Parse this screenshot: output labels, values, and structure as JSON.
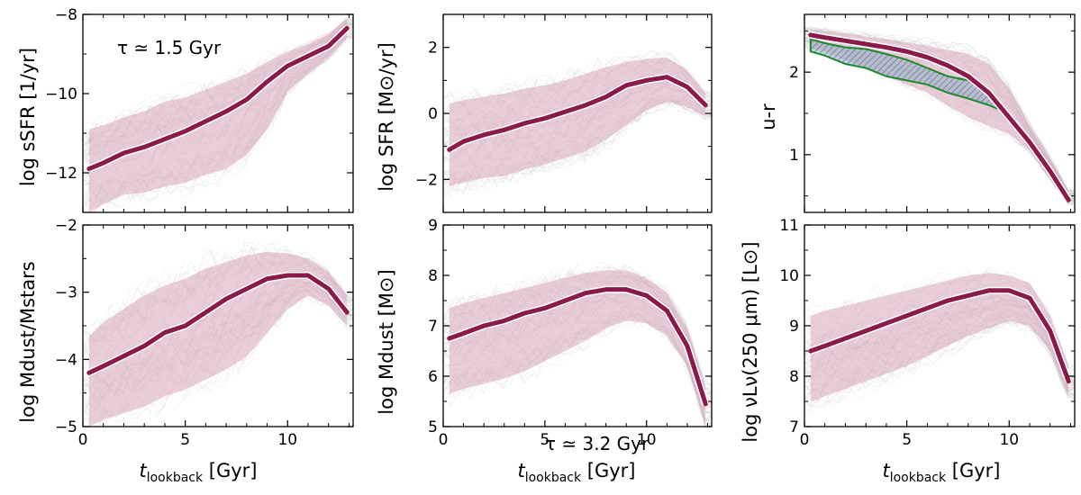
{
  "figure": {
    "xlabel_main": "t",
    "xlabel_sub": "lookback",
    "xlabel_unit": " [Gyr]",
    "annotation_top": "τ ≃ 1.5 Gyr",
    "annotation_bottom": "τ ≃ 3.2 Gyr",
    "colors": {
      "median": "#8b1a4a",
      "band": "#d8a8bc",
      "tracks": "#9a9a9a",
      "obs_fill": "#8fb0c8",
      "obs_edge": "#1f8a2c"
    }
  },
  "chart_data": [
    {
      "id": "ssfr",
      "type": "line",
      "ylabel": "log sSFR [1/yr]",
      "xlim": [
        0,
        13.2
      ],
      "ylim": [
        -13,
        -8
      ],
      "xticks": [
        0,
        5,
        10
      ],
      "yticks": [
        -12,
        -10,
        -8
      ],
      "ytick_labels": [
        "−12",
        "−10",
        "−8"
      ],
      "xtick_labels": [
        "",
        "",
        ""
      ],
      "annotation": "τ ≃ 1.5 Gyr",
      "series": [
        {
          "name": "median",
          "x": [
            0.3,
            1,
            2,
            3,
            4,
            5,
            6,
            7,
            8,
            9,
            10,
            11,
            12,
            12.9
          ],
          "y": [
            -11.9,
            -11.75,
            -11.5,
            -11.35,
            -11.15,
            -10.95,
            -10.7,
            -10.45,
            -10.15,
            -9.7,
            -9.3,
            -9.05,
            -8.8,
            -8.35
          ]
        },
        {
          "name": "upper",
          "x": [
            0.3,
            1,
            2,
            3,
            4,
            5,
            6,
            7,
            8,
            9,
            10,
            11,
            12,
            12.9
          ],
          "y": [
            -10.9,
            -10.8,
            -10.6,
            -10.45,
            -10.2,
            -10.1,
            -9.9,
            -9.7,
            -9.5,
            -9.2,
            -8.95,
            -8.75,
            -8.5,
            -8.1
          ]
        },
        {
          "name": "lower",
          "x": [
            0.3,
            1,
            2,
            3,
            4,
            5,
            6,
            7,
            8,
            9,
            10,
            11,
            12,
            12.9
          ],
          "y": [
            -13,
            -12.8,
            -12.55,
            -12.5,
            -12.35,
            -12.25,
            -12.05,
            -11.9,
            -11.55,
            -10.9,
            -9.95,
            -9.5,
            -9.1,
            -8.6
          ]
        }
      ]
    },
    {
      "id": "sfr",
      "type": "line",
      "ylabel": "log SFR [M⊙/yr]",
      "xlim": [
        0,
        13.2
      ],
      "ylim": [
        -3,
        3
      ],
      "xticks": [
        0,
        5,
        10
      ],
      "yticks": [
        -2,
        0,
        2
      ],
      "ytick_labels": [
        "−2",
        "0",
        "2"
      ],
      "xtick_labels": [
        "",
        "",
        ""
      ],
      "series": [
        {
          "name": "median",
          "x": [
            0.3,
            1,
            2,
            3,
            4,
            5,
            6,
            7,
            8,
            9,
            10,
            11,
            12,
            12.9
          ],
          "y": [
            -1.1,
            -0.85,
            -0.65,
            -0.5,
            -0.3,
            -0.15,
            0.05,
            0.25,
            0.5,
            0.85,
            1.0,
            1.1,
            0.8,
            0.25
          ]
        },
        {
          "name": "upper",
          "x": [
            0.3,
            1,
            2,
            3,
            4,
            5,
            6,
            7,
            8,
            9,
            10,
            11,
            12,
            12.9
          ],
          "y": [
            0.3,
            0.4,
            0.5,
            0.6,
            0.75,
            0.85,
            1.0,
            1.2,
            1.4,
            1.55,
            1.65,
            1.7,
            1.3,
            0.6
          ]
        },
        {
          "name": "lower",
          "x": [
            0.3,
            1,
            2,
            3,
            4,
            5,
            6,
            7,
            8,
            9,
            10,
            11,
            12,
            12.9
          ],
          "y": [
            -2.2,
            -2.1,
            -1.95,
            -1.9,
            -1.7,
            -1.55,
            -1.35,
            -1.15,
            -0.8,
            -0.35,
            0.1,
            0.35,
            0.2,
            -0.1
          ]
        }
      ]
    },
    {
      "id": "ur",
      "type": "line",
      "ylabel": "u-r",
      "xlim": [
        0,
        13.2
      ],
      "ylim": [
        0.3,
        2.7
      ],
      "xticks": [
        0,
        5,
        10
      ],
      "yticks": [
        1,
        2
      ],
      "ytick_labels": [
        "1",
        "2"
      ],
      "xtick_labels": [
        "",
        "",
        ""
      ],
      "series": [
        {
          "name": "median",
          "x": [
            0.3,
            1,
            2,
            3,
            4,
            5,
            6,
            7,
            8,
            9,
            10,
            11,
            12,
            12.9
          ],
          "y": [
            2.45,
            2.42,
            2.38,
            2.34,
            2.3,
            2.25,
            2.18,
            2.08,
            1.95,
            1.75,
            1.45,
            1.15,
            0.8,
            0.45
          ]
        },
        {
          "name": "upper",
          "x": [
            0.3,
            1,
            2,
            3,
            4,
            5,
            6,
            7,
            8,
            9,
            10,
            11,
            12,
            12.9
          ],
          "y": [
            2.52,
            2.5,
            2.47,
            2.43,
            2.4,
            2.36,
            2.32,
            2.27,
            2.22,
            2.1,
            1.8,
            1.35,
            0.95,
            0.55
          ]
        },
        {
          "name": "lower",
          "x": [
            0.3,
            1,
            2,
            3,
            4,
            5,
            6,
            7,
            8,
            9,
            10,
            11,
            12,
            12.9
          ],
          "y": [
            2.3,
            2.25,
            2.15,
            2.05,
            1.95,
            1.85,
            1.75,
            1.6,
            1.45,
            1.35,
            1.25,
            1.05,
            0.7,
            0.4
          ]
        },
        {
          "name": "observed_upper",
          "x": [
            0.3,
            1,
            2,
            3,
            4,
            5,
            6,
            7,
            8,
            9,
            9.5
          ],
          "y": [
            2.4,
            2.35,
            2.3,
            2.28,
            2.22,
            2.15,
            2.05,
            1.95,
            1.9,
            1.75,
            1.65
          ]
        },
        {
          "name": "observed_lower",
          "x": [
            0.3,
            1,
            2,
            3,
            4,
            5,
            6,
            7,
            8,
            9,
            9.5
          ],
          "y": [
            2.25,
            2.2,
            2.1,
            2.05,
            1.95,
            1.9,
            1.85,
            1.75,
            1.68,
            1.6,
            1.55
          ]
        }
      ]
    },
    {
      "id": "dust_ratio",
      "type": "line",
      "ylabel": "log Mdust/Mstars",
      "xlim": [
        0,
        13.2
      ],
      "ylim": [
        -5,
        -2
      ],
      "xticks": [
        0,
        5,
        10
      ],
      "yticks": [
        -5,
        -4,
        -3,
        -2
      ],
      "ytick_labels": [
        "−5",
        "−4",
        "−3",
        "−2"
      ],
      "xtick_labels": [
        "0",
        "5",
        "10"
      ],
      "series": [
        {
          "name": "median",
          "x": [
            0.3,
            1,
            2,
            3,
            4,
            5,
            6,
            7,
            8,
            9,
            10,
            11,
            12,
            12.9
          ],
          "y": [
            -4.2,
            -4.1,
            -3.95,
            -3.8,
            -3.6,
            -3.5,
            -3.3,
            -3.1,
            -2.95,
            -2.8,
            -2.75,
            -2.75,
            -2.95,
            -3.3
          ]
        },
        {
          "name": "upper",
          "x": [
            0.3,
            1,
            2,
            3,
            4,
            5,
            6,
            7,
            8,
            9,
            10,
            11,
            12,
            12.9
          ],
          "y": [
            -3.65,
            -3.45,
            -3.25,
            -3.05,
            -2.9,
            -2.8,
            -2.65,
            -2.55,
            -2.45,
            -2.4,
            -2.42,
            -2.5,
            -2.7,
            -3.05
          ]
        },
        {
          "name": "lower",
          "x": [
            0.3,
            1,
            2,
            3,
            4,
            5,
            6,
            7,
            8,
            9,
            10,
            11,
            12,
            12.9
          ],
          "y": [
            -5,
            -4.9,
            -4.8,
            -4.7,
            -4.55,
            -4.45,
            -4.3,
            -4.15,
            -3.95,
            -3.6,
            -3.25,
            -3.05,
            -3.2,
            -3.5
          ]
        }
      ]
    },
    {
      "id": "dust_mass",
      "type": "line",
      "ylabel": "log Mdust [M⊙]",
      "xlim": [
        0,
        13.2
      ],
      "ylim": [
        5,
        9
      ],
      "xticks": [
        0,
        5,
        10
      ],
      "yticks": [
        5,
        6,
        7,
        8,
        9
      ],
      "ytick_labels": [
        "5",
        "6",
        "7",
        "8",
        "9"
      ],
      "xtick_labels": [
        "0",
        "5",
        "10"
      ],
      "annotation": "τ ≃ 3.2 Gyr",
      "series": [
        {
          "name": "median",
          "x": [
            0.3,
            1,
            2,
            3,
            4,
            5,
            6,
            7,
            8,
            9,
            10,
            11,
            12,
            12.9
          ],
          "y": [
            6.75,
            6.85,
            7.0,
            7.1,
            7.25,
            7.35,
            7.5,
            7.65,
            7.72,
            7.72,
            7.6,
            7.3,
            6.6,
            5.45
          ]
        },
        {
          "name": "upper",
          "x": [
            0.3,
            1,
            2,
            3,
            4,
            5,
            6,
            7,
            8,
            9,
            10,
            11,
            12,
            12.9
          ],
          "y": [
            7.35,
            7.45,
            7.55,
            7.65,
            7.75,
            7.85,
            7.95,
            8.05,
            8.1,
            8.1,
            7.95,
            7.65,
            6.95,
            5.8
          ]
        },
        {
          "name": "lower",
          "x": [
            0.3,
            1,
            2,
            3,
            4,
            5,
            6,
            7,
            8,
            9,
            10,
            11,
            12,
            12.9
          ],
          "y": [
            5.65,
            5.75,
            5.85,
            5.95,
            6.1,
            6.3,
            6.5,
            6.7,
            6.95,
            7.1,
            7.05,
            6.8,
            6.2,
            5.0
          ]
        }
      ]
    },
    {
      "id": "luminosity",
      "type": "line",
      "ylabel": "log νLν(250 μm) [L⊙]",
      "xlim": [
        0,
        13.2
      ],
      "ylim": [
        7,
        11
      ],
      "xticks": [
        0,
        5,
        10
      ],
      "yticks": [
        7,
        8,
        9,
        10,
        11
      ],
      "ytick_labels": [
        "7",
        "8",
        "9",
        "10",
        "11"
      ],
      "xtick_labels": [
        "0",
        "5",
        "10"
      ],
      "series": [
        {
          "name": "median",
          "x": [
            0.3,
            1,
            2,
            3,
            4,
            5,
            6,
            7,
            8,
            9,
            10,
            11,
            12,
            12.9
          ],
          "y": [
            8.5,
            8.6,
            8.75,
            8.9,
            9.05,
            9.2,
            9.35,
            9.5,
            9.6,
            9.7,
            9.7,
            9.55,
            8.9,
            7.9
          ]
        },
        {
          "name": "upper",
          "x": [
            0.3,
            1,
            2,
            3,
            4,
            5,
            6,
            7,
            8,
            9,
            10,
            11,
            12,
            12.9
          ],
          "y": [
            9.2,
            9.3,
            9.4,
            9.5,
            9.6,
            9.7,
            9.8,
            9.9,
            10.0,
            10.05,
            10.0,
            9.85,
            9.2,
            8.2
          ]
        },
        {
          "name": "lower",
          "x": [
            0.3,
            1,
            2,
            3,
            4,
            5,
            6,
            7,
            8,
            9,
            10,
            11,
            12,
            12.9
          ],
          "y": [
            7.5,
            7.6,
            7.75,
            7.9,
            8.05,
            8.2,
            8.4,
            8.6,
            8.8,
            8.95,
            9.1,
            9.0,
            8.5,
            7.6
          ]
        }
      ]
    }
  ]
}
